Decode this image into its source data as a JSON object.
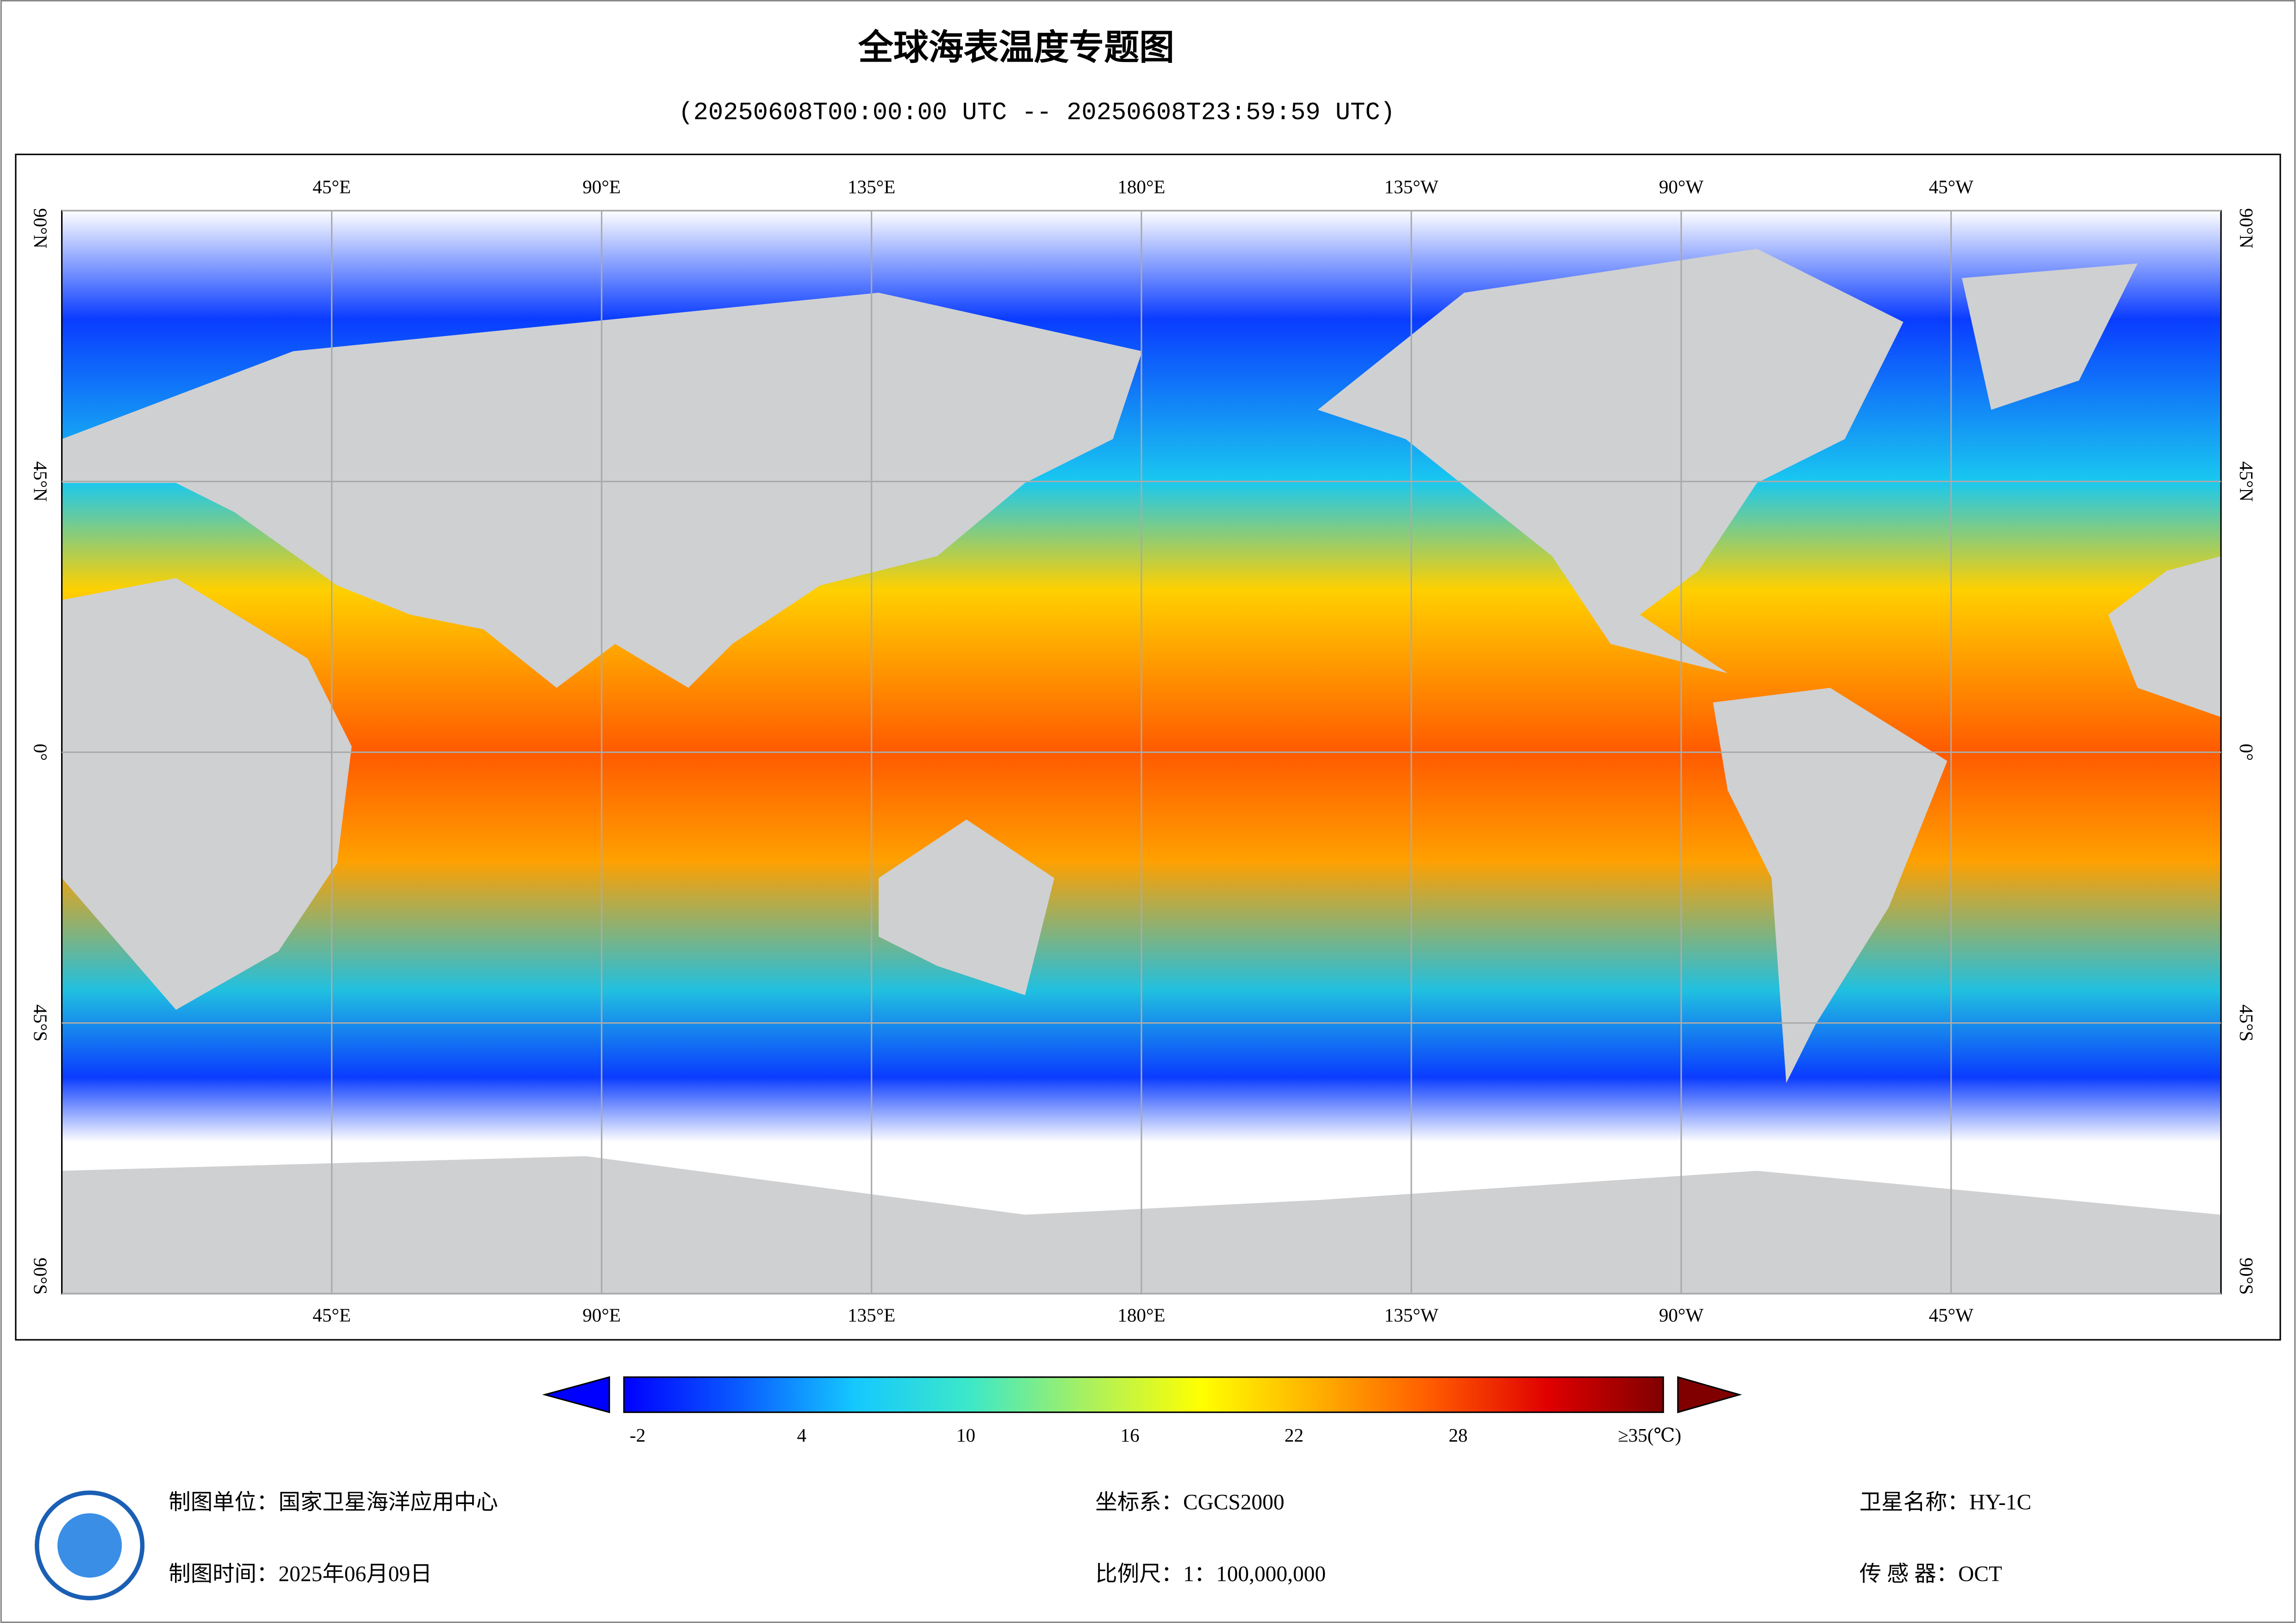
{
  "header": {
    "title": "全球海表温度专题图",
    "subtitle": "(20250608T00:00:00 UTC -- 20250608T23:59:59 UTC)"
  },
  "map": {
    "lonlim": [
      0,
      360
    ],
    "latlim": [
      -90,
      90
    ],
    "lonticks": [
      {
        "value": 45,
        "label": "45°E"
      },
      {
        "value": 90,
        "label": "90°E"
      },
      {
        "value": 135,
        "label": "135°E"
      },
      {
        "value": 180,
        "label": "180°E"
      },
      {
        "value": 225,
        "label": "135°W"
      },
      {
        "value": 270,
        "label": "90°W"
      },
      {
        "value": 315,
        "label": "45°W"
      }
    ],
    "latticks": [
      {
        "value": 90,
        "label": "90°N"
      },
      {
        "value": 45,
        "label": "45°N"
      },
      {
        "value": 0,
        "label": "0°"
      },
      {
        "value": -45,
        "label": "45°S"
      },
      {
        "value": -90,
        "label": "90°S"
      }
    ],
    "grid": true
  },
  "colorbar": {
    "lim": [
      -2.5,
      35.5
    ],
    "ticks": [
      -2,
      4,
      10,
      16,
      22,
      28,
      {
        "value": 35,
        "label": "≥35(℃)"
      }
    ],
    "colormap": [
      "#0000ff",
      "#0a5cff",
      "#15c8ff",
      "#3de8c8",
      "#a8f060",
      "#ffff00",
      "#ffb000",
      "#ff5a00",
      "#e00000",
      "#800000"
    ],
    "under_color": "#0000ff",
    "over_color": "#800000"
  },
  "footer": {
    "producer": "制图单位：国家卫星海洋应用中心",
    "date": "制图时间：2025年06月09日",
    "crs": "坐标系：CGCS2000",
    "scale": "比例尺：1：100,000,000",
    "satellite": "卫星名称：HY-1C",
    "sensor": "传 感 器：OCT"
  }
}
